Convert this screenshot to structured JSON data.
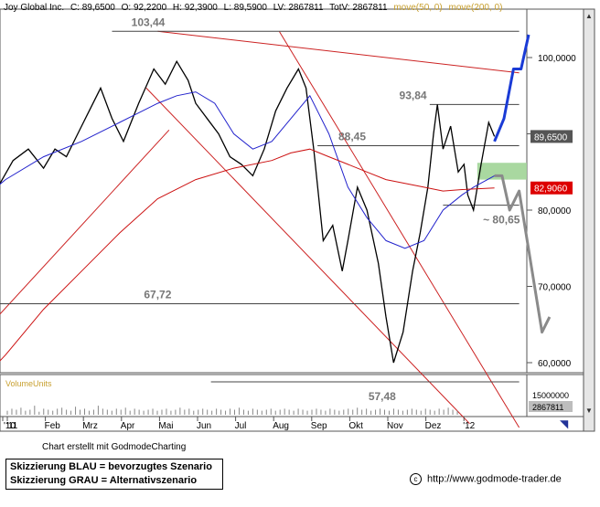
{
  "header": {
    "name": "Joy Global Inc.",
    "c": "C: 89,6500",
    "o": "O: 92,2200",
    "h": "H: 92,3900",
    "l": "L: 89,5900",
    "lv": "LV: 2867811",
    "totv": "TotV: 2867811",
    "ma1": "move(50, 0)",
    "ma2": "move(200, 0)",
    "ma1_color": "#2222cc",
    "ma2_color": "#cc1111"
  },
  "chart_data": {
    "type": "line",
    "title": "Joy Global Inc.",
    "x_ticks": [
      "'10",
      "'11",
      "Feb",
      "Mrz",
      "Apr",
      "Mai",
      "Jun",
      "Jul",
      "Aug",
      "Sep",
      "Okt",
      "Nov",
      "Dez",
      "'12"
    ],
    "y_ticks": [
      "100,0000",
      "90,0000",
      "80,0000",
      "70,0000",
      "60,0000"
    ],
    "ylim": [
      52,
      108
    ],
    "grid": false,
    "series": [
      {
        "name": "Joy Global Inc.",
        "color": "#000000",
        "points": [
          [
            -0.95,
            76.5
          ],
          [
            -0.6,
            80.0
          ],
          [
            -0.2,
            83.0
          ],
          [
            0.2,
            86.5
          ],
          [
            0.6,
            88.0
          ],
          [
            1.0,
            85.5
          ],
          [
            1.3,
            88.0
          ],
          [
            1.6,
            87.0
          ],
          [
            1.9,
            90.0
          ],
          [
            2.2,
            93.0
          ],
          [
            2.5,
            96.0
          ],
          [
            2.8,
            92.0
          ],
          [
            3.1,
            89.0
          ],
          [
            3.5,
            94.0
          ],
          [
            3.9,
            98.5
          ],
          [
            4.2,
            96.5
          ],
          [
            4.5,
            99.5
          ],
          [
            4.8,
            97.0
          ],
          [
            5.0,
            94.0
          ],
          [
            5.3,
            92.0
          ],
          [
            5.6,
            90.0
          ],
          [
            5.9,
            87.0
          ],
          [
            6.2,
            86.0
          ],
          [
            6.5,
            84.5
          ],
          [
            6.8,
            88.0
          ],
          [
            7.1,
            93.0
          ],
          [
            7.4,
            96.0
          ],
          [
            7.7,
            98.5
          ],
          [
            7.9,
            96.0
          ],
          [
            8.1,
            88.0
          ],
          [
            8.35,
            76.0
          ],
          [
            8.6,
            78.0
          ],
          [
            8.85,
            72.0
          ],
          [
            9.0,
            76.0
          ],
          [
            9.25,
            83.0
          ],
          [
            9.5,
            80.0
          ],
          [
            9.8,
            73.0
          ],
          [
            10.0,
            66.0
          ],
          [
            10.2,
            60.0
          ],
          [
            10.45,
            64.0
          ],
          [
            10.7,
            72.0
          ],
          [
            10.9,
            77.0
          ],
          [
            11.1,
            83.0
          ],
          [
            11.25,
            90.0
          ],
          [
            11.35,
            93.84
          ],
          [
            11.5,
            88.0
          ],
          [
            11.7,
            91.0
          ],
          [
            11.9,
            85.0
          ],
          [
            12.05,
            86.0
          ],
          [
            12.15,
            82.0
          ],
          [
            12.3,
            80.0
          ],
          [
            12.5,
            86.0
          ],
          [
            12.7,
            91.5
          ],
          [
            12.85,
            89.65
          ]
        ]
      },
      {
        "name": "move(50, 0)",
        "color": "#2222cc",
        "points": [
          [
            -0.95,
            80.0
          ],
          [
            0.0,
            84.0
          ],
          [
            1.0,
            87.0
          ],
          [
            2.0,
            89.0
          ],
          [
            3.0,
            91.5
          ],
          [
            4.0,
            94.0
          ],
          [
            4.5,
            95.0
          ],
          [
            5.0,
            95.5
          ],
          [
            5.5,
            94.0
          ],
          [
            6.0,
            90.0
          ],
          [
            6.5,
            88.0
          ],
          [
            7.0,
            89.0
          ],
          [
            7.5,
            92.0
          ],
          [
            8.0,
            95.0
          ],
          [
            8.5,
            90.0
          ],
          [
            9.0,
            83.0
          ],
          [
            9.5,
            79.0
          ],
          [
            10.0,
            76.0
          ],
          [
            10.5,
            75.0
          ],
          [
            11.0,
            76.0
          ],
          [
            11.5,
            80.0
          ],
          [
            12.0,
            82.0
          ],
          [
            12.3,
            83.0
          ],
          [
            12.85,
            84.5
          ]
        ]
      },
      {
        "name": "move(200, 0)",
        "color": "#cc1111",
        "points": [
          [
            -0.95,
            56.0
          ],
          [
            0.0,
            61.0
          ],
          [
            1.0,
            67.0
          ],
          [
            2.0,
            72.0
          ],
          [
            3.0,
            77.0
          ],
          [
            4.0,
            81.5
          ],
          [
            5.0,
            84.0
          ],
          [
            6.0,
            85.5
          ],
          [
            7.0,
            86.5
          ],
          [
            7.5,
            87.5
          ],
          [
            8.0,
            88.0
          ],
          [
            8.5,
            87.0
          ],
          [
            9.0,
            86.0
          ],
          [
            9.5,
            85.0
          ],
          [
            10.0,
            84.0
          ],
          [
            10.5,
            83.5
          ],
          [
            11.0,
            83.0
          ],
          [
            11.5,
            82.5
          ],
          [
            12.0,
            82.7
          ],
          [
            12.85,
            82.9
          ]
        ]
      }
    ],
    "levels": [
      {
        "label": "103,44",
        "value": 103.44
      },
      {
        "label": "93,84",
        "value": 93.84
      },
      {
        "label": "88,45",
        "value": 88.45
      },
      {
        "label": "~ 80,65",
        "value": 80.65
      },
      {
        "label": "67,72",
        "value": 67.72
      },
      {
        "label": "57,48",
        "value": 57.48
      }
    ],
    "price_tags": [
      {
        "label": "89,6500",
        "value": 89.65,
        "color": "#555555"
      },
      {
        "label": "82,9060",
        "value": 82.906,
        "color": "#dd0000"
      }
    ],
    "trendlines": [
      {
        "color": "#cc2222",
        "from": [
          4.0,
          103.44
        ],
        "to": [
          13.5,
          98.0
        ]
      },
      {
        "color": "#cc2222",
        "from": [
          7.2,
          103.4
        ],
        "to": [
          13.5,
          51.5
        ]
      },
      {
        "color": "#cc2222",
        "from": [
          3.7,
          96.0
        ],
        "to": [
          12.2,
          52.0
        ]
      },
      {
        "color": "#cc2222",
        "from": [
          -0.95,
          62.0
        ],
        "to": [
          4.3,
          90.5
        ]
      }
    ],
    "scenario_blue": [
      [
        12.85,
        89.0
      ],
      [
        13.1,
        92.0
      ],
      [
        13.35,
        98.5
      ],
      [
        13.55,
        98.5
      ],
      [
        13.75,
        103.0
      ]
    ],
    "scenario_grey": [
      [
        12.85,
        84.5
      ],
      [
        13.05,
        84.5
      ],
      [
        13.25,
        80.0
      ],
      [
        13.5,
        82.5
      ],
      [
        14.1,
        64.0
      ],
      [
        14.3,
        66.0
      ]
    ],
    "target_zone": [
      84.0,
      86.2
    ],
    "volume": {
      "label": "VolumeUnits",
      "tick": "15000000",
      "last": "2867811",
      "bars": [
        4,
        6,
        5,
        7,
        4,
        5,
        9,
        3,
        6,
        5,
        4,
        6,
        7,
        5,
        4,
        8,
        5,
        6,
        4,
        5,
        9,
        6,
        5,
        4,
        6,
        5,
        7,
        4,
        6,
        5,
        4,
        5,
        6,
        4,
        5,
        6,
        4,
        5,
        7,
        5,
        6,
        4,
        5,
        6,
        5,
        4,
        6,
        5,
        4,
        6,
        5,
        7,
        5,
        4,
        6,
        5,
        4,
        5,
        6,
        4,
        5,
        6,
        5,
        4,
        6,
        5,
        4,
        5,
        6,
        5,
        4,
        6,
        5,
        4,
        5,
        6,
        5,
        7,
        5,
        6,
        4,
        5,
        6,
        5,
        4,
        6,
        5,
        4,
        5,
        6,
        5,
        4,
        6,
        5,
        4,
        6,
        5,
        7,
        5,
        4
      ]
    }
  },
  "footer": {
    "credit": "Chart erstellt mit GodmodeCharting",
    "legend_blue": "Skizzierung BLAU = bevorzugtes Szenario",
    "legend_grey": "Skizzierung GRAU = Alternativszenario",
    "source": "http://www.godmode-trader.de"
  }
}
